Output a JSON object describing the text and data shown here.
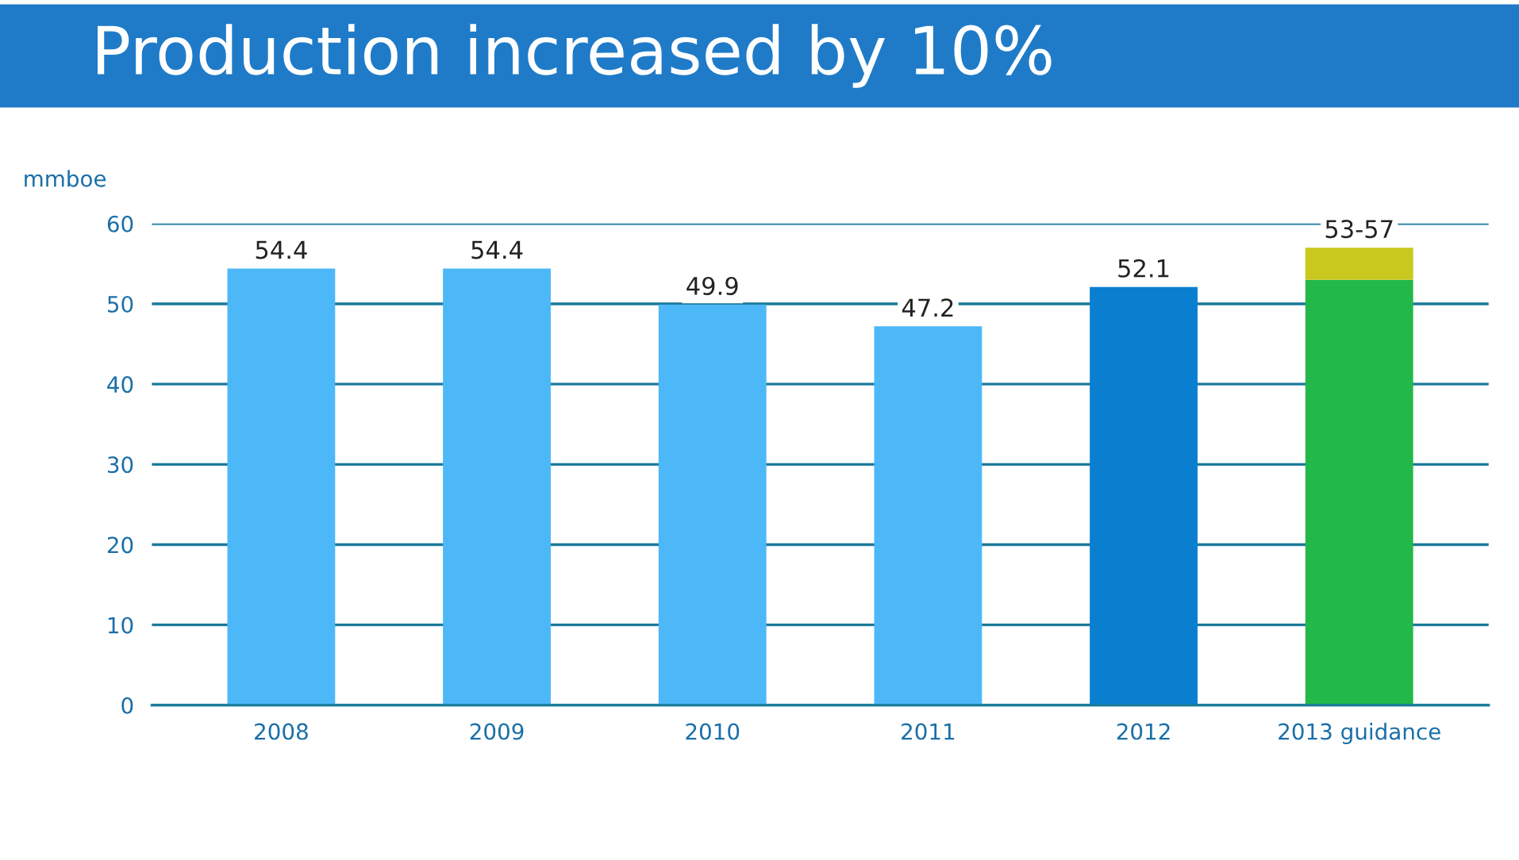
{
  "chart_data": {
    "type": "bar",
    "title": "Production increased by 10%",
    "ylabel": "mmboe",
    "categories": [
      "2008",
      "2009",
      "2010",
      "2011",
      "2012",
      "2013 guidance"
    ],
    "stacked": true,
    "series": [
      {
        "colors": [
          "#4db8f8",
          "#4db8f8",
          "#4db8f8",
          "#4db8f8",
          "#0a7fd0",
          "#22b84a"
        ],
        "values": [
          54.4,
          54.4,
          49.9,
          47.2,
          52.1,
          53
        ]
      },
      {
        "color": "#c8c81e",
        "values": [
          null,
          null,
          null,
          null,
          null,
          4
        ]
      }
    ],
    "totals": [
      "54.4",
      "54.4",
      "49.9",
      "47.2",
      "52.1",
      "53-57"
    ],
    "ylim": [
      0,
      60
    ],
    "yticks": [
      0,
      10,
      20,
      30,
      40,
      50,
      60
    ],
    "grid": "y",
    "legend": false
  }
}
